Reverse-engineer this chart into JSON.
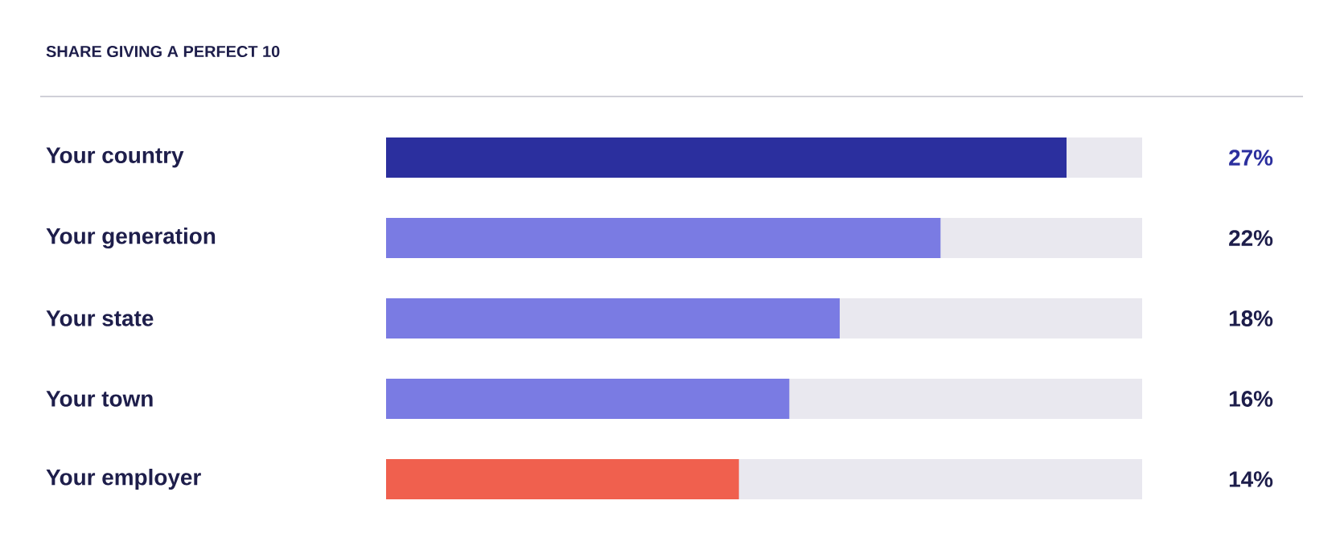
{
  "chart_data": {
    "type": "bar",
    "orientation": "horizontal",
    "title": "SHARE GIVING A PERFECT 10",
    "categories": [
      "Your country",
      "Your generation",
      "Your state",
      "Your town",
      "Your employer"
    ],
    "values": [
      27,
      22,
      18,
      16,
      14
    ],
    "colors": [
      "#2b2f9e",
      "#7a7be3",
      "#7a7be3",
      "#7a7be3",
      "#f0604e"
    ],
    "value_labels": [
      "27%",
      "22%",
      "18%",
      "16%",
      "14%"
    ],
    "xlim": [
      0,
      30
    ]
  }
}
